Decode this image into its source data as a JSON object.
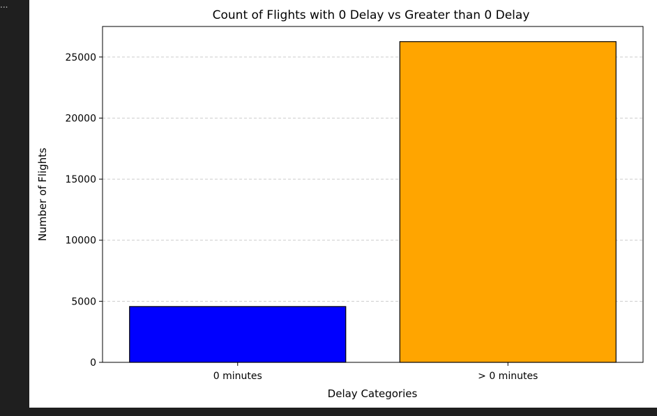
{
  "cell": {
    "ellipsis": "..."
  },
  "chart_data": {
    "type": "bar",
    "title": "Count of Flights with 0 Delay vs Greater than 0 Delay",
    "xlabel": "Delay Categories",
    "ylabel": "Number of Flights",
    "categories": [
      "0 minutes",
      "> 0 minutes"
    ],
    "values": [
      4570,
      26260
    ],
    "colors": [
      "#0000ff",
      "#ffa500"
    ],
    "edgecolor": "#000000",
    "ylim": [
      0,
      27500
    ],
    "yticks": [
      0,
      5000,
      10000,
      15000,
      20000,
      25000
    ],
    "grid": {
      "axis": "y",
      "style": "dashed",
      "color": "#cccccc"
    }
  }
}
